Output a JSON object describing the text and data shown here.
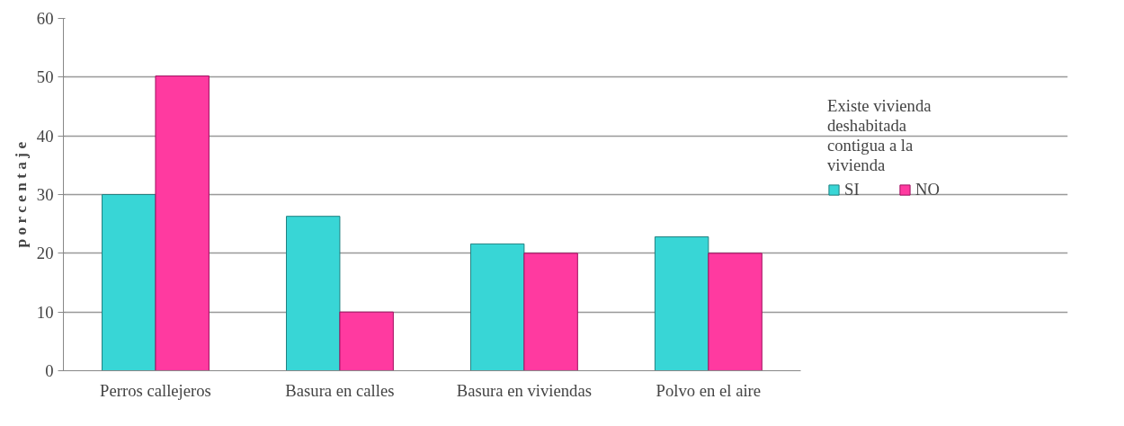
{
  "chart_data": {
    "type": "bar",
    "ylabel": "p o r c e n t a j e",
    "legend_title": "Existe vivienda deshabitada contigua a la vivienda",
    "categories": [
      "Perros callejeros",
      "Basura en calles",
      "Basura en viviendas",
      "Polvo en el aire"
    ],
    "series": [
      {
        "name": "SI",
        "color": "#38d6d6",
        "values": [
          30,
          26.3,
          21.6,
          22.8
        ]
      },
      {
        "name": "NO",
        "color": "#ff3aa0",
        "values": [
          50.2,
          10,
          20,
          20
        ]
      }
    ],
    "ylim": [
      0,
      60
    ],
    "yticks": [
      0,
      10,
      20,
      30,
      40,
      50,
      60
    ],
    "grid": "y",
    "legend": "right"
  }
}
